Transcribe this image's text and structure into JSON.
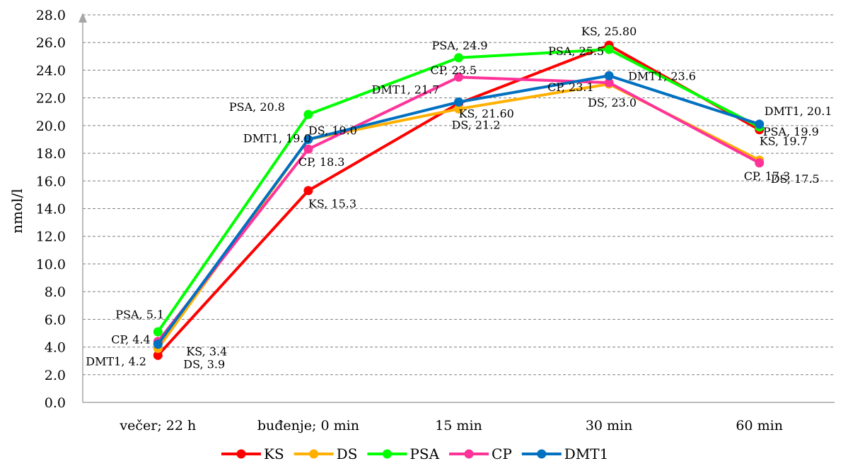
{
  "chart_data": {
    "type": "line",
    "ylabel": "nmol/l",
    "xlabel": "",
    "ylim": [
      0,
      28
    ],
    "yticks": [
      "0.0",
      "2.0",
      "4.0",
      "6.0",
      "8.0",
      "10.0",
      "12.0",
      "14.0",
      "16.0",
      "18.0",
      "20.0",
      "22.0",
      "24.0",
      "26.0",
      "28.0"
    ],
    "categories": [
      "večer; 22 h",
      "buđenje; 0 min",
      "15 min",
      "30 min",
      "60 min"
    ],
    "grid": "horizontal dashed",
    "legend_position": "bottom",
    "series": [
      {
        "name": "KS",
        "color": "#ff0000",
        "values": [
          3.4,
          15.3,
          21.6,
          25.8,
          19.7
        ],
        "labels": [
          "KS, 3.4",
          "KS, 15.3",
          "KS, 21.60",
          "KS, 25.80",
          "KS, 19.7"
        ]
      },
      {
        "name": "DS",
        "color": "#ffb000",
        "values": [
          3.9,
          19.0,
          21.2,
          23.0,
          17.5
        ],
        "labels": [
          "DS, 3.9",
          "DS, 19.0",
          "DS, 21.2",
          "DS, 23.0",
          "DS, 17.5"
        ]
      },
      {
        "name": "PSA",
        "color": "#00ff00",
        "values": [
          5.1,
          20.8,
          24.9,
          25.5,
          19.9
        ],
        "labels": [
          "PSA, 5.1",
          "PSA, 20.8",
          "PSA, 24.9",
          "PSA, 25.5",
          "PSA, 19.9"
        ]
      },
      {
        "name": "CP",
        "color": "#ff3399",
        "values": [
          4.4,
          18.3,
          23.5,
          23.1,
          17.3
        ],
        "labels": [
          "CP, 4.4",
          "CP, 18.3",
          "CP, 23.5",
          "CP, 23.1",
          "CP, 17.3"
        ]
      },
      {
        "name": "DMT1",
        "color": "#0070c0",
        "values": [
          4.2,
          19.0,
          21.7,
          23.6,
          20.1
        ],
        "labels": [
          "DMT1, 4.2",
          "DMT1, 19.0",
          "DMT1, 21.7",
          "DMT1, 23.6",
          "DMT1, 20.1"
        ]
      }
    ]
  }
}
